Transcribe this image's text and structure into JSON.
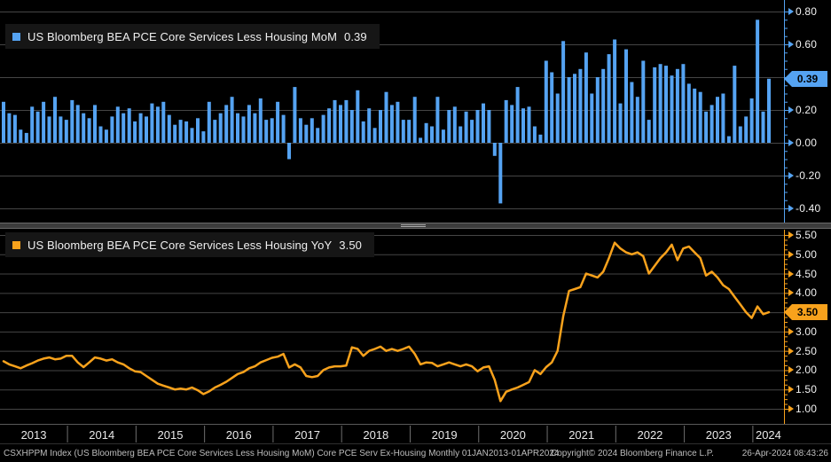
{
  "top_chart": {
    "legend_label": "US Bloomberg BEA PCE Core Services Less Housing MoM",
    "legend_value": "0.39",
    "badge": "0.39",
    "axis_ticks": [
      "0.80",
      "0.60",
      "0.40",
      "0.20",
      "0.00",
      "-0.20",
      "-0.40"
    ],
    "color": "#55a3f2"
  },
  "bottom_chart": {
    "legend_label": "US Bloomberg BEA PCE Core Services Less Housing YoY",
    "legend_value": "3.50",
    "badge": "3.50",
    "axis_ticks": [
      "5.50",
      "5.00",
      "4.50",
      "4.00",
      "3.50",
      "3.00",
      "2.50",
      "2.00",
      "1.50",
      "1.00"
    ],
    "color": "#f8a21c"
  },
  "x_axis": {
    "years": [
      "2013",
      "2014",
      "2015",
      "2016",
      "2017",
      "2018",
      "2019",
      "2020",
      "2021",
      "2022",
      "2023",
      "2024"
    ]
  },
  "status_bar": {
    "left": "CSXHPPM Index (US Bloomberg BEA PCE Core Services Less Housing MoM) Core PCE Serv Ex-Housing  Monthly 01JAN2013-01APR2024",
    "center": "Copyright© 2024 Bloomberg Finance L.P.",
    "right": "26-Apr-2024 08:43:26"
  },
  "chart_data": [
    {
      "type": "bar",
      "title": "US Bloomberg BEA PCE Core Services Less Housing MoM",
      "frequency": "monthly",
      "x_start": "2013-01",
      "x_end": "2024-03",
      "last_value": 0.39,
      "ylim": [
        -0.45,
        0.87
      ],
      "y_ticks": [
        0.8,
        0.6,
        0.4,
        0.2,
        0.0,
        -0.2,
        -0.4
      ],
      "legend_position": "top-left",
      "grid": true,
      "values": [
        0.25,
        0.18,
        0.17,
        0.08,
        0.06,
        0.22,
        0.19,
        0.25,
        0.16,
        0.28,
        0.16,
        0.14,
        0.26,
        0.23,
        0.18,
        0.15,
        0.23,
        0.1,
        0.08,
        0.16,
        0.22,
        0.18,
        0.21,
        0.13,
        0.18,
        0.16,
        0.24,
        0.22,
        0.25,
        0.17,
        0.11,
        0.14,
        0.13,
        0.09,
        0.15,
        0.07,
        0.25,
        0.14,
        0.18,
        0.23,
        0.28,
        0.18,
        0.16,
        0.23,
        0.18,
        0.27,
        0.14,
        0.15,
        0.25,
        0.17,
        -0.1,
        0.34,
        0.15,
        0.11,
        0.15,
        0.09,
        0.17,
        0.21,
        0.26,
        0.23,
        0.26,
        0.2,
        0.32,
        0.13,
        0.21,
        0.09,
        0.2,
        0.31,
        0.23,
        0.25,
        0.14,
        0.14,
        0.28,
        0.03,
        0.12,
        0.1,
        0.28,
        0.08,
        0.2,
        0.22,
        0.1,
        0.19,
        0.14,
        0.2,
        0.24,
        0.2,
        -0.08,
        -0.37,
        0.26,
        0.23,
        0.34,
        0.21,
        0.22,
        0.1,
        0.05,
        0.5,
        0.43,
        0.3,
        0.62,
        0.4,
        0.42,
        0.45,
        0.55,
        0.3,
        0.4,
        0.45,
        0.54,
        0.63,
        0.24,
        0.57,
        0.37,
        0.28,
        0.5,
        0.14,
        0.46,
        0.48,
        0.47,
        0.41,
        0.45,
        0.48,
        0.36,
        0.33,
        0.31,
        0.19,
        0.23,
        0.28,
        0.3,
        0.04,
        0.47,
        0.1,
        0.16,
        0.27,
        0.75,
        0.19,
        0.39
      ]
    },
    {
      "type": "line",
      "title": "US Bloomberg BEA PCE Core Services Less Housing YoY",
      "frequency": "monthly",
      "x_start": "2013-01",
      "x_end": "2024-03",
      "last_value": 3.5,
      "ylim": [
        0.95,
        5.65
      ],
      "y_ticks": [
        5.5,
        5.0,
        4.5,
        4.0,
        3.5,
        3.0,
        2.5,
        2.0,
        1.5,
        1.0
      ],
      "legend_position": "top-left",
      "grid": true,
      "values": [
        2.23,
        2.15,
        2.1,
        2.05,
        2.12,
        2.18,
        2.25,
        2.3,
        2.33,
        2.28,
        2.3,
        2.37,
        2.37,
        2.2,
        2.08,
        2.2,
        2.33,
        2.3,
        2.25,
        2.28,
        2.2,
        2.15,
        2.05,
        1.97,
        1.95,
        1.85,
        1.75,
        1.65,
        1.6,
        1.55,
        1.5,
        1.52,
        1.5,
        1.55,
        1.48,
        1.38,
        1.45,
        1.55,
        1.62,
        1.7,
        1.8,
        1.9,
        1.95,
        2.05,
        2.1,
        2.2,
        2.26,
        2.32,
        2.35,
        2.42,
        2.07,
        2.15,
        2.07,
        1.85,
        1.82,
        1.85,
        2.0,
        2.07,
        2.1,
        2.1,
        2.12,
        2.59,
        2.55,
        2.37,
        2.5,
        2.55,
        2.61,
        2.5,
        2.55,
        2.5,
        2.55,
        2.61,
        2.42,
        2.15,
        2.2,
        2.19,
        2.1,
        2.15,
        2.2,
        2.15,
        2.1,
        2.15,
        2.1,
        1.97,
        2.07,
        2.1,
        1.75,
        1.2,
        1.44,
        1.5,
        1.55,
        1.62,
        1.69,
        2.0,
        1.9,
        2.08,
        2.2,
        2.5,
        3.4,
        4.05,
        4.1,
        4.15,
        4.5,
        4.45,
        4.4,
        4.55,
        4.9,
        5.3,
        5.15,
        5.05,
        5.0,
        5.05,
        4.95,
        4.5,
        4.7,
        4.9,
        5.05,
        5.25,
        4.85,
        5.15,
        5.2,
        5.05,
        4.9,
        4.45,
        4.55,
        4.4,
        4.2,
        4.1,
        3.9,
        3.7,
        3.5,
        3.35,
        3.65,
        3.45,
        3.5
      ]
    }
  ]
}
